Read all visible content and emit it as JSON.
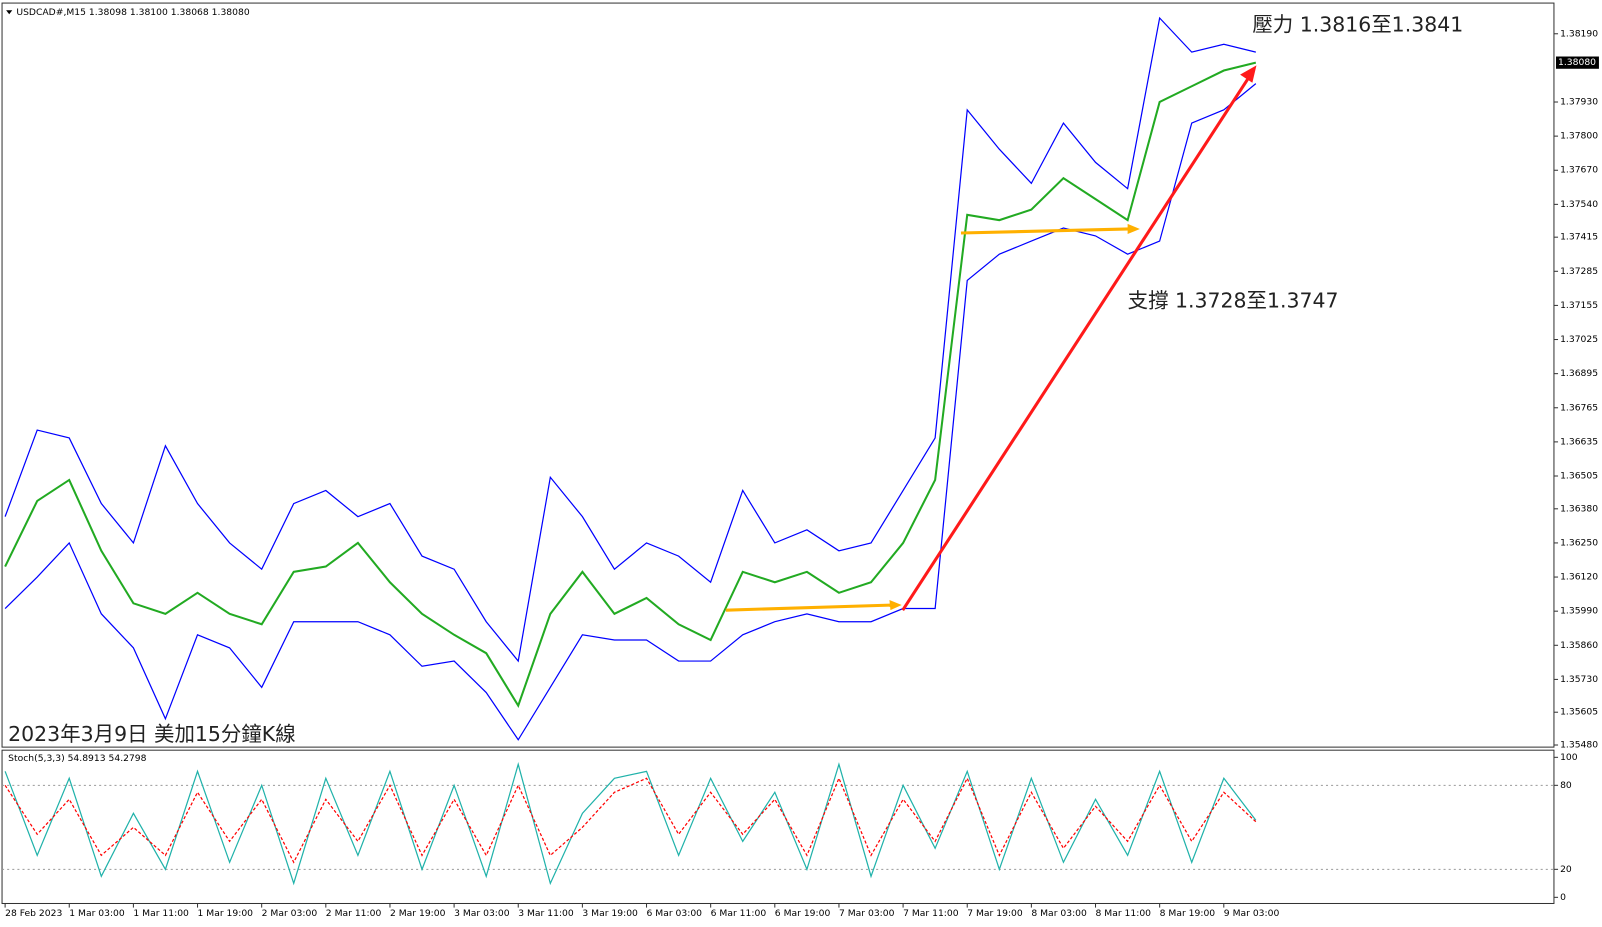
{
  "chart_data": [
    {
      "type": "line",
      "title": "USDCAD#,M15  1.38098 1.38100 1.38068 1.38080",
      "annotations": [
        "壓力 1.3816至1.3841",
        "支撐 1.3728至1.3747",
        "2023年3月9日 美加15分鐘K線"
      ],
      "categories": [
        "28 Feb 2023",
        null,
        "1 Mar 03:00",
        null,
        "1 Mar 11:00",
        null,
        "1 Mar 19:00",
        null,
        "2 Mar 03:00",
        null,
        "2 Mar 11:00",
        null,
        "2 Mar 19:00",
        null,
        "3 Mar 03:00",
        null,
        "3 Mar 11:00",
        null,
        "3 Mar 19:00",
        null,
        "6 Mar 03:00",
        null,
        "6 Mar 11:00",
        null,
        "6 Mar 19:00",
        null,
        "7 Mar 03:00",
        null,
        "7 Mar 11:00",
        null,
        "7 Mar 19:00",
        null,
        "8 Mar 03:00",
        null,
        "8 Mar 11:00",
        null,
        "8 Mar 19:00",
        null,
        "9 Mar 03:00",
        null
      ],
      "series": [
        {
          "color": "#22aa22",
          "values": [
            1.3616,
            1.3641,
            1.3649,
            1.3622,
            1.3602,
            1.3598,
            1.3606,
            1.3598,
            1.3594,
            1.3614,
            1.3616,
            1.3625,
            1.361,
            1.3598,
            1.359,
            1.3583,
            1.3563,
            1.3598,
            1.3614,
            1.3598,
            1.3604,
            1.3594,
            1.3588,
            1.3614,
            1.361,
            1.3614,
            1.3606,
            1.361,
            1.3625,
            1.3649,
            1.375,
            1.3748,
            1.3752,
            1.3764,
            1.3756,
            1.3748,
            1.3793,
            1.3799,
            1.3805,
            1.3808
          ]
        },
        {
          "color": "#0000ff",
          "values": [
            1.3635,
            1.3668,
            1.3665,
            1.364,
            1.3625,
            1.3662,
            1.364,
            1.3625,
            1.3615,
            1.364,
            1.3645,
            1.3635,
            1.364,
            1.362,
            1.3615,
            1.3595,
            1.358,
            1.365,
            1.3635,
            1.3615,
            1.3625,
            1.362,
            1.361,
            1.3645,
            1.3625,
            1.363,
            1.3622,
            1.3625,
            1.3645,
            1.3665,
            1.379,
            1.3775,
            1.3762,
            1.3785,
            1.377,
            1.376,
            1.3825,
            1.3812,
            1.3815,
            1.3812
          ]
        },
        {
          "color": "#0000ff",
          "values": [
            1.36,
            1.3612,
            1.3625,
            1.3598,
            1.3585,
            1.3558,
            1.359,
            1.3585,
            1.357,
            1.3595,
            1.3595,
            1.3595,
            1.359,
            1.3578,
            1.358,
            1.3568,
            1.355,
            1.357,
            1.359,
            1.3588,
            1.3588,
            1.358,
            1.358,
            1.359,
            1.3595,
            1.3598,
            1.3595,
            1.3595,
            1.36,
            1.36,
            1.3725,
            1.3735,
            1.374,
            1.3745,
            1.3742,
            1.3735,
            1.374,
            1.3785,
            1.379,
            1.38
          ]
        }
      ],
      "current_price": {
        "value": 1.3808,
        "label": "1.38080"
      },
      "ylim": [
        1.35472,
        1.38307
      ],
      "yticks": [
        {
          "value": 1.3819,
          "label": "1.38190"
        },
        {
          "value": 1.3793,
          "label": "1.37930"
        },
        {
          "value": 1.378,
          "label": "1.37800"
        },
        {
          "value": 1.3767,
          "label": "1.37670"
        },
        {
          "value": 1.3754,
          "label": "1.37540"
        },
        {
          "value": 1.37415,
          "label": "1.37415"
        },
        {
          "value": 1.37285,
          "label": "1.37285"
        },
        {
          "value": 1.37155,
          "label": "1.37155"
        },
        {
          "value": 1.37025,
          "label": "1.37025"
        },
        {
          "value": 1.36895,
          "label": "1.36895"
        },
        {
          "value": 1.36765,
          "label": "1.36765"
        },
        {
          "value": 1.36635,
          "label": "1.36635"
        },
        {
          "value": 1.36505,
          "label": "1.36505"
        },
        {
          "value": 1.3638,
          "label": "1.36380"
        },
        {
          "value": 1.3625,
          "label": "1.36250"
        },
        {
          "value": 1.3612,
          "label": "1.36120"
        },
        {
          "value": 1.3599,
          "label": "1.35990"
        },
        {
          "value": 1.3586,
          "label": "1.35860"
        },
        {
          "value": 1.3573,
          "label": "1.35730"
        },
        {
          "value": 1.35605,
          "label": "1.35605"
        },
        {
          "value": 1.3548,
          "label": "1.35480"
        }
      ]
    },
    {
      "type": "line",
      "title": "Stoch(5,3,3) 54.8913 54.2798",
      "series": [
        {
          "color": "#20b2aa",
          "values": [
            90,
            30,
            85,
            15,
            60,
            20,
            90,
            25,
            80,
            10,
            85,
            30,
            90,
            20,
            80,
            15,
            95,
            10,
            60,
            85,
            90,
            30,
            85,
            40,
            75,
            20,
            95,
            15,
            80,
            35,
            90,
            20,
            85,
            25,
            70,
            30,
            90,
            25,
            85,
            55
          ]
        },
        {
          "color": "#ff0000",
          "style": "dashed",
          "values": [
            80,
            45,
            70,
            30,
            50,
            30,
            75,
            40,
            70,
            25,
            70,
            40,
            80,
            30,
            70,
            30,
            80,
            30,
            50,
            75,
            85,
            45,
            75,
            45,
            70,
            30,
            85,
            30,
            70,
            40,
            85,
            30,
            75,
            35,
            65,
            40,
            80,
            40,
            75,
            54
          ]
        }
      ],
      "ylim": [
        -4.4,
        105.1
      ],
      "yticks": [
        0,
        20,
        80,
        100
      ],
      "grid": [
        20,
        80
      ]
    }
  ]
}
